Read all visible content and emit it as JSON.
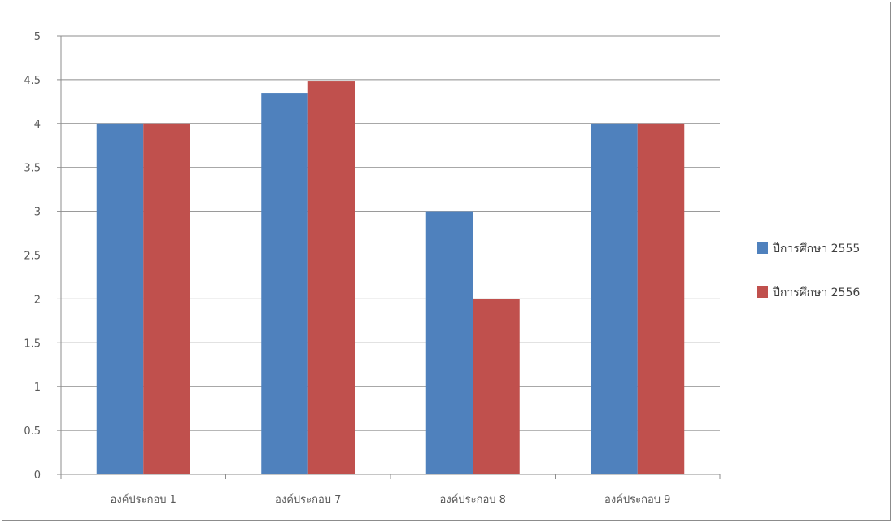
{
  "chart_data": {
    "type": "bar",
    "title": "",
    "xlabel": "",
    "ylabel": "",
    "categories": [
      "องค์ประกอบ 1",
      "องค์ประกอบ 7",
      "องค์ประกอบ 8",
      "องค์ประกอบ 9"
    ],
    "series": [
      {
        "name": "ปีการศึกษา 2555",
        "color": "#4F81BD",
        "values": [
          4,
          4.35,
          3,
          4
        ]
      },
      {
        "name": "ปีการศึกษา 2556",
        "color": "#C0504D",
        "values": [
          4,
          4.48,
          2,
          4
        ]
      }
    ],
    "ylim": [
      0,
      5
    ],
    "yticks": [
      "0",
      "0.5",
      "1",
      "1.5",
      "2",
      "2.5",
      "3",
      "3.5",
      "4",
      "4.5",
      "5"
    ],
    "grid": true,
    "legend_position": "right"
  }
}
